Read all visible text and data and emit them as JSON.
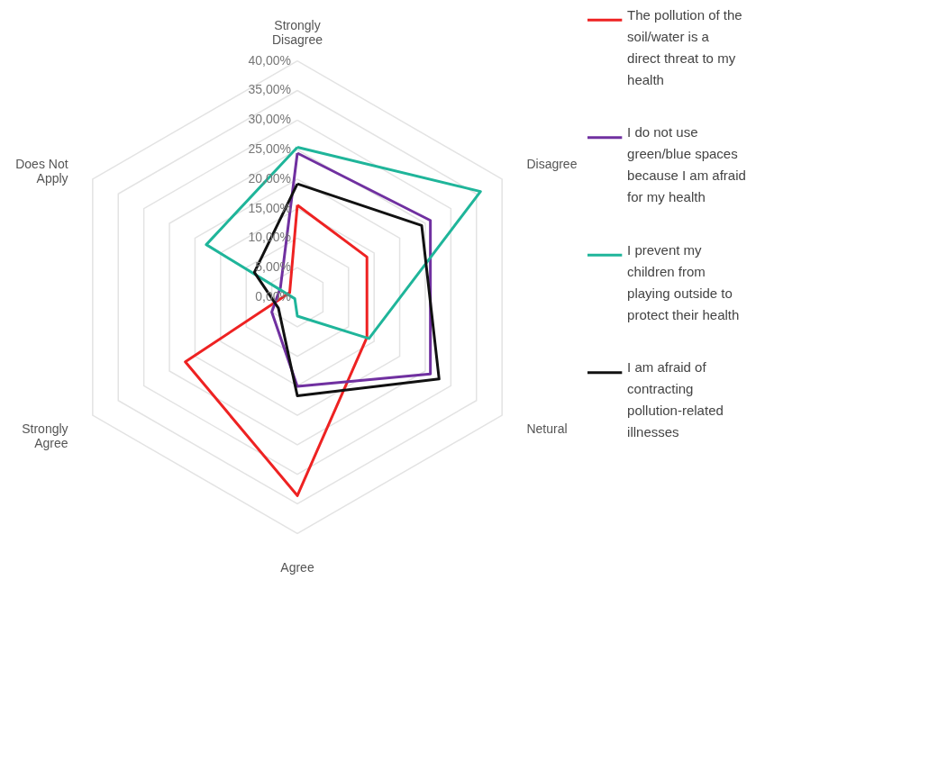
{
  "chart_data": {
    "type": "radar",
    "categories": [
      "Strongly Disagree",
      "Disagree",
      "Netural",
      "Agree",
      "Strongly Agree",
      "Does Not Apply"
    ],
    "ylim": [
      0,
      40
    ],
    "yticks": [
      {
        "value": 0,
        "label": "0,00%"
      },
      {
        "value": 5,
        "label": "5,00%"
      },
      {
        "value": 10,
        "label": "10,00%"
      },
      {
        "value": 15,
        "label": "15,00%"
      },
      {
        "value": 20,
        "label": "20,00%"
      },
      {
        "value": 25,
        "label": "25,00%"
      },
      {
        "value": 30,
        "label": "30,00%"
      },
      {
        "value": 35,
        "label": "35,00%"
      },
      {
        "value": 40,
        "label": "40,00%"
      }
    ],
    "grid": true,
    "legend": "right",
    "series": [
      {
        "name": "The pollution of the soil/water is a direct threat to my health",
        "color": "#ee2222",
        "values": [
          15.6,
          13.6,
          13.6,
          33.6,
          21.9,
          1.5
        ]
      },
      {
        "name": "I do not use green/blue spaces because I am afraid for my health",
        "color": "#7030a0",
        "values": [
          24.4,
          26,
          26,
          15.1,
          5,
          3.3
        ]
      },
      {
        "name": "I prevent my children from playing outside to protect their health",
        "color": "#1fb59a",
        "values": [
          25.4,
          35.8,
          14,
          3.2,
          0.5,
          17.8
        ]
      },
      {
        "name": "I am afraid of contracting pollution-related illnesses",
        "color": "#111111",
        "values": [
          19.2,
          24.3,
          27.7,
          16.7,
          3.7,
          8.4
        ]
      }
    ]
  }
}
